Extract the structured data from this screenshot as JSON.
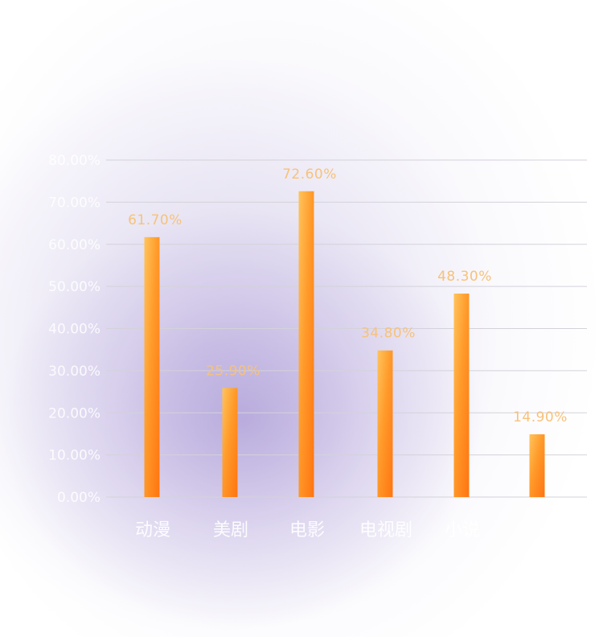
{
  "chart_data": {
    "type": "bar",
    "categories": [
      "动漫",
      "美剧",
      "电影",
      "电视剧",
      "小说",
      ""
    ],
    "values": [
      61.7,
      25.9,
      72.6,
      34.8,
      48.3,
      14.9
    ],
    "value_labels": [
      "61.70%",
      "25.90%",
      "72.60%",
      "34.80%",
      "48.30%",
      "14.90%"
    ],
    "y_ticks": [
      "0.00%",
      "10.00%",
      "20.00%",
      "30.00%",
      "40.00%",
      "50.00%",
      "60.00%",
      "70.00%",
      "80.00%"
    ],
    "ylim": [
      0,
      80
    ],
    "grid": true,
    "colors": {
      "bar_top": "#ffc257",
      "bar_bottom": "#ff7a12",
      "label": "#f7c27a"
    }
  }
}
